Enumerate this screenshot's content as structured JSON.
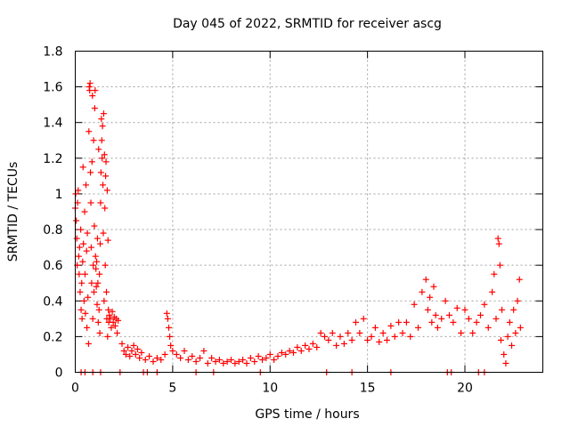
{
  "chart_data": {
    "type": "scatter",
    "title": "Day 045 of 2022, SRMTID for receiver ascg",
    "xlabel": "GPS time / hours",
    "ylabel": "SRMTID / TECUs",
    "xlim": [
      0,
      24
    ],
    "ylim": [
      0,
      1.8
    ],
    "xticks": [
      0,
      5,
      10,
      15,
      20
    ],
    "yticks": [
      0,
      0.2,
      0.4,
      0.6,
      0.8,
      1,
      1.2,
      1.4,
      1.6,
      1.8
    ],
    "ytick_labels": [
      "0",
      "0.2",
      "0.4",
      "0.6",
      "0.8",
      "1",
      "1.2",
      "1.4",
      "1.6",
      "1.8"
    ],
    "grid": true,
    "marker": "+",
    "color": "#ff0000",
    "series": [
      {
        "name": "SRMTID",
        "points": [
          [
            0.0,
            0.92
          ],
          [
            0.02,
            1.0
          ],
          [
            0.05,
            0.85
          ],
          [
            0.08,
            0.75
          ],
          [
            0.1,
            0.6
          ],
          [
            0.12,
            0.95
          ],
          [
            0.15,
            1.02
          ],
          [
            0.18,
            0.65
          ],
          [
            0.2,
            0.55
          ],
          [
            0.22,
            0.7
          ],
          [
            0.25,
            0.45
          ],
          [
            0.28,
            0.8
          ],
          [
            0.3,
            0.35
          ],
          [
            0.33,
            0.5
          ],
          [
            0.35,
            0.3
          ],
          [
            0.38,
            0.62
          ],
          [
            0.4,
            1.15
          ],
          [
            0.42,
            0.72
          ],
          [
            0.45,
            0.4
          ],
          [
            0.48,
            0.9
          ],
          [
            0.5,
            0.55
          ],
          [
            0.52,
            0.33
          ],
          [
            0.55,
            1.05
          ],
          [
            0.58,
            0.68
          ],
          [
            0.6,
            0.25
          ],
          [
            0.62,
            0.78
          ],
          [
            0.65,
            0.42
          ],
          [
            0.68,
            0.16
          ],
          [
            0.7,
            1.35
          ],
          [
            0.72,
            1.6
          ],
          [
            0.74,
            1.58
          ],
          [
            0.76,
            1.62
          ],
          [
            0.78,
            1.12
          ],
          [
            0.8,
            0.95
          ],
          [
            0.82,
            0.7
          ],
          [
            0.84,
            0.5
          ],
          [
            0.86,
            1.18
          ],
          [
            0.88,
            1.55
          ],
          [
            0.9,
            0.3
          ],
          [
            0.92,
            0.6
          ],
          [
            0.94,
            1.3
          ],
          [
            0.96,
            0.45
          ],
          [
            0.98,
            0.82
          ],
          [
            1.0,
            1.48
          ],
          [
            1.02,
            1.58
          ],
          [
            1.04,
            0.65
          ],
          [
            1.06,
            0.58
          ],
          [
            1.08,
            0.48
          ],
          [
            1.1,
            0.62
          ],
          [
            1.12,
            0.38
          ],
          [
            1.14,
            0.75
          ],
          [
            1.16,
            0.5
          ],
          [
            1.18,
            0.28
          ],
          [
            1.2,
            1.25
          ],
          [
            1.22,
            0.35
          ],
          [
            1.24,
            0.55
          ],
          [
            1.26,
            0.22
          ],
          [
            1.28,
            0.72
          ],
          [
            1.3,
            0.95
          ],
          [
            1.32,
            1.12
          ],
          [
            1.34,
            1.42
          ],
          [
            1.36,
            1.3
          ],
          [
            1.38,
            1.2
          ],
          [
            1.4,
            1.38
          ],
          [
            1.42,
            1.05
          ],
          [
            1.44,
            0.78
          ],
          [
            1.46,
            1.45
          ],
          [
            1.48,
            0.4
          ],
          [
            1.5,
            1.22
          ],
          [
            1.52,
            0.92
          ],
          [
            1.54,
            0.6
          ],
          [
            1.56,
            1.1
          ],
          [
            1.58,
            1.18
          ],
          [
            1.6,
            0.45
          ],
          [
            1.62,
            0.3
          ],
          [
            1.64,
            1.02
          ],
          [
            1.66,
            0.2
          ],
          [
            1.68,
            0.74
          ],
          [
            1.7,
            0.35
          ],
          [
            1.72,
            0.28
          ],
          [
            1.75,
            0.32
          ],
          [
            1.8,
            0.3
          ],
          [
            1.85,
            0.25
          ],
          [
            1.9,
            0.34
          ],
          [
            1.95,
            0.28
          ],
          [
            2.0,
            0.31
          ],
          [
            2.05,
            0.26
          ],
          [
            2.1,
            0.3
          ],
          [
            2.15,
            0.22
          ],
          [
            2.2,
            0.29
          ],
          [
            2.4,
            0.16
          ],
          [
            2.5,
            0.12
          ],
          [
            2.6,
            0.1
          ],
          [
            2.7,
            0.14
          ],
          [
            2.8,
            0.09
          ],
          [
            2.9,
            0.12
          ],
          [
            3.0,
            0.15
          ],
          [
            3.1,
            0.1
          ],
          [
            3.2,
            0.13
          ],
          [
            3.3,
            0.08
          ],
          [
            3.4,
            0.11
          ],
          [
            3.6,
            0.07
          ],
          [
            3.8,
            0.09
          ],
          [
            4.0,
            0.06
          ],
          [
            4.2,
            0.08
          ],
          [
            4.4,
            0.07
          ],
          [
            4.6,
            0.1
          ],
          [
            4.7,
            0.33
          ],
          [
            4.75,
            0.3
          ],
          [
            4.8,
            0.25
          ],
          [
            4.85,
            0.2
          ],
          [
            4.9,
            0.15
          ],
          [
            5.0,
            0.12
          ],
          [
            5.2,
            0.1
          ],
          [
            5.4,
            0.08
          ],
          [
            5.6,
            0.12
          ],
          [
            5.8,
            0.07
          ],
          [
            6.0,
            0.09
          ],
          [
            6.2,
            0.06
          ],
          [
            6.4,
            0.08
          ],
          [
            6.6,
            0.12
          ],
          [
            6.8,
            0.05
          ],
          [
            7.0,
            0.08
          ],
          [
            7.2,
            0.06
          ],
          [
            7.4,
            0.07
          ],
          [
            7.6,
            0.05
          ],
          [
            7.8,
            0.06
          ],
          [
            8.0,
            0.07
          ],
          [
            8.2,
            0.05
          ],
          [
            8.4,
            0.06
          ],
          [
            8.6,
            0.07
          ],
          [
            8.8,
            0.05
          ],
          [
            9.0,
            0.08
          ],
          [
            9.2,
            0.06
          ],
          [
            9.4,
            0.09
          ],
          [
            9.6,
            0.07
          ],
          [
            9.8,
            0.08
          ],
          [
            10.0,
            0.1
          ],
          [
            10.2,
            0.07
          ],
          [
            10.4,
            0.09
          ],
          [
            10.6,
            0.11
          ],
          [
            10.8,
            0.1
          ],
          [
            11.0,
            0.12
          ],
          [
            11.2,
            0.11
          ],
          [
            11.4,
            0.14
          ],
          [
            11.6,
            0.12
          ],
          [
            11.8,
            0.15
          ],
          [
            12.0,
            0.13
          ],
          [
            12.2,
            0.16
          ],
          [
            12.4,
            0.14
          ],
          [
            12.6,
            0.22
          ],
          [
            12.8,
            0.2
          ],
          [
            13.0,
            0.18
          ],
          [
            13.2,
            0.22
          ],
          [
            13.4,
            0.15
          ],
          [
            13.6,
            0.2
          ],
          [
            13.8,
            0.16
          ],
          [
            14.0,
            0.22
          ],
          [
            14.2,
            0.18
          ],
          [
            14.4,
            0.28
          ],
          [
            14.6,
            0.22
          ],
          [
            14.8,
            0.3
          ],
          [
            15.0,
            0.18
          ],
          [
            15.2,
            0.2
          ],
          [
            15.4,
            0.25
          ],
          [
            15.6,
            0.17
          ],
          [
            15.8,
            0.22
          ],
          [
            16.0,
            0.18
          ],
          [
            16.2,
            0.26
          ],
          [
            16.4,
            0.2
          ],
          [
            16.6,
            0.28
          ],
          [
            16.8,
            0.22
          ],
          [
            17.0,
            0.28
          ],
          [
            17.2,
            0.2
          ],
          [
            17.4,
            0.38
          ],
          [
            17.6,
            0.25
          ],
          [
            17.8,
            0.45
          ],
          [
            18.0,
            0.52
          ],
          [
            18.1,
            0.35
          ],
          [
            18.2,
            0.42
          ],
          [
            18.3,
            0.28
          ],
          [
            18.4,
            0.48
          ],
          [
            18.5,
            0.32
          ],
          [
            18.6,
            0.25
          ],
          [
            18.8,
            0.3
          ],
          [
            19.0,
            0.4
          ],
          [
            19.2,
            0.32
          ],
          [
            19.4,
            0.28
          ],
          [
            19.6,
            0.36
          ],
          [
            19.8,
            0.22
          ],
          [
            20.0,
            0.35
          ],
          [
            20.2,
            0.3
          ],
          [
            20.4,
            0.22
          ],
          [
            20.6,
            0.28
          ],
          [
            20.8,
            0.32
          ],
          [
            21.0,
            0.38
          ],
          [
            21.2,
            0.25
          ],
          [
            21.4,
            0.45
          ],
          [
            21.5,
            0.55
          ],
          [
            21.6,
            0.3
          ],
          [
            21.7,
            0.75
          ],
          [
            21.75,
            0.72
          ],
          [
            21.8,
            0.6
          ],
          [
            21.85,
            0.18
          ],
          [
            21.9,
            0.35
          ],
          [
            22.0,
            0.1
          ],
          [
            22.1,
            0.05
          ],
          [
            22.2,
            0.2
          ],
          [
            22.3,
            0.28
          ],
          [
            22.4,
            0.15
          ],
          [
            22.5,
            0.35
          ],
          [
            22.6,
            0.22
          ],
          [
            22.7,
            0.4
          ],
          [
            22.8,
            0.52
          ],
          [
            22.85,
            0.25
          ]
        ]
      }
    ],
    "zero_points_x": [
      0.3,
      0.5,
      0.9,
      1.3,
      2.3,
      3.5,
      3.7,
      4.2,
      6.2,
      7.1,
      9.5,
      12.9,
      14.2,
      16.2,
      19.1,
      19.3,
      20.7,
      21.0
    ]
  }
}
